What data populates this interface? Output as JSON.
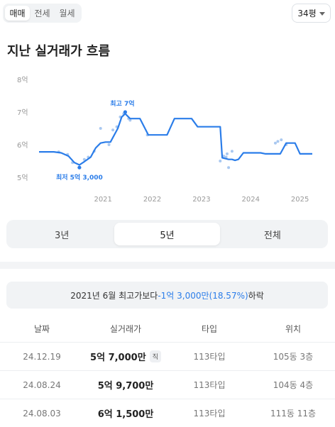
{
  "top_tabs": [
    "매매",
    "전세",
    "월세"
  ],
  "size_select": "34평",
  "section_title": "지난 실거래가 흐름",
  "chart_data": {
    "type": "line",
    "y_ticks": [
      "8억",
      "7억",
      "6억",
      "5억"
    ],
    "y_tick_values": [
      8,
      7,
      6,
      5
    ],
    "x_ticks": [
      "2021",
      "2022",
      "2023",
      "2024",
      "2025"
    ],
    "x_tick_values": [
      2021,
      2022,
      2023,
      2024,
      2025
    ],
    "ylim": [
      5,
      8
    ],
    "xlim": [
      2019.7,
      2025.25
    ],
    "grid": false,
    "annotations": {
      "max_label": "최고 7억",
      "min_label": "최저 5억 3,000"
    },
    "max_point": {
      "x": 2021.45,
      "y": 7.0
    },
    "min_point": {
      "x": 2020.52,
      "y": 5.3
    },
    "series": [
      {
        "type": "line",
        "x": [
          2019.7,
          2020.0,
          2020.15,
          2020.3,
          2020.42,
          2020.52,
          2020.62,
          2020.75,
          2020.85,
          2020.95,
          2021.05,
          2021.15,
          2021.3,
          2021.38,
          2021.45,
          2021.55,
          2021.65,
          2021.75,
          2021.92,
          2022.0,
          2022.3,
          2022.45,
          2022.55,
          2022.8,
          2022.92,
          2023.0,
          2023.2,
          2023.38,
          2023.42,
          2023.55,
          2023.62,
          2023.68,
          2023.75,
          2023.85,
          2024.2,
          2024.3,
          2024.5,
          2024.6,
          2024.72,
          2024.9,
          2025.0,
          2025.25
        ],
        "y": [
          5.78,
          5.78,
          5.75,
          5.65,
          5.45,
          5.38,
          5.48,
          5.62,
          5.9,
          6.05,
          6.08,
          6.08,
          6.5,
          6.85,
          6.95,
          6.8,
          6.8,
          6.8,
          6.3,
          6.3,
          6.3,
          6.8,
          6.8,
          6.8,
          6.55,
          6.55,
          6.55,
          6.55,
          5.6,
          5.55,
          5.55,
          5.52,
          5.55,
          5.75,
          5.75,
          5.72,
          5.72,
          5.72,
          6.05,
          6.05,
          5.72,
          5.72
        ]
      },
      {
        "type": "scatter",
        "x": [
          2020.1,
          2020.28,
          2020.38,
          2020.52,
          2020.62,
          2020.7,
          2020.82,
          2020.95,
          2021.12,
          2021.2,
          2021.28,
          2021.35,
          2021.42,
          2021.52,
          2021.55,
          2021.9,
          2023.38,
          2023.45,
          2023.5,
          2023.52,
          2023.55,
          2023.62,
          2024.5,
          2024.55,
          2024.62,
          2024.72
        ],
        "y": [
          5.78,
          5.7,
          5.45,
          5.3,
          5.55,
          5.62,
          5.8,
          6.5,
          6.0,
          6.45,
          6.55,
          6.85,
          6.95,
          6.8,
          6.75,
          6.3,
          5.5,
          5.65,
          5.62,
          5.72,
          5.3,
          5.8,
          6.05,
          6.1,
          6.15,
          6.0
        ]
      }
    ]
  },
  "period_tabs": [
    "3년",
    "5년",
    "전체"
  ],
  "summary": {
    "prefix": "2021년 6월 최고가보다 ",
    "diff": "-1억 3,000만(18.57%)",
    "suffix": " 하락"
  },
  "table": {
    "headers": [
      "날짜",
      "실거래가",
      "타입",
      "위치"
    ],
    "rows": [
      {
        "date": "24.12.19",
        "price": "5억 7,000만",
        "badge": "직",
        "type": "113타입",
        "location": "105동 3층"
      },
      {
        "date": "24.08.24",
        "price": "5억 9,700만",
        "badge": "",
        "type": "113타입",
        "location": "104동 4층"
      },
      {
        "date": "24.08.03",
        "price": "6억 1,500만",
        "badge": "",
        "type": "113타입",
        "location": "111동 11층"
      }
    ]
  },
  "colors": {
    "accent": "#2b7de9",
    "scatter": "#a9c8f0",
    "muted": "#999999"
  }
}
